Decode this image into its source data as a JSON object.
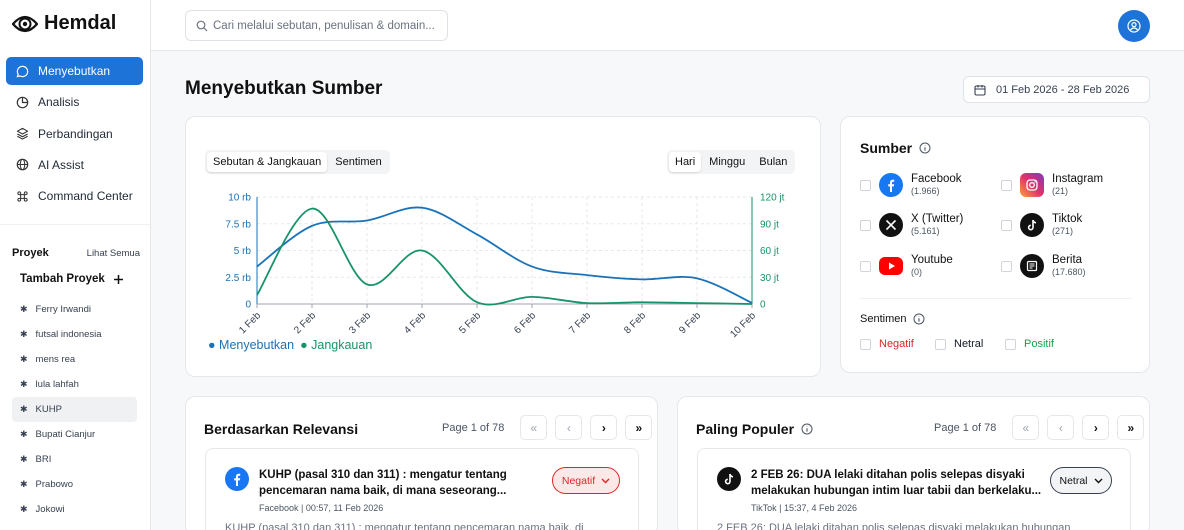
{
  "app": {
    "name": "Hemdal"
  },
  "sidebar": {
    "items": [
      {
        "label": "Menyebutkan",
        "icon": "chat-bubble-icon"
      },
      {
        "label": "Analisis",
        "icon": "pie-chart-icon"
      },
      {
        "label": "Perbandingan",
        "icon": "layers-icon"
      },
      {
        "label": "AI Assist",
        "icon": "globe-icon"
      },
      {
        "label": "Command Center",
        "icon": "command-icon"
      }
    ],
    "projects_title": "Proyek",
    "see_all": "Lihat Semua",
    "add_project": "Tambah Proyek",
    "projects": [
      "Ferry Irwandi",
      "futsal indonesia",
      "mens rea",
      "lula lahfah",
      "KUHP",
      "Bupati Cianjur",
      "BRI",
      "Prabowo",
      "Jokowi"
    ],
    "active_project": "KUHP"
  },
  "header": {
    "search_placeholder": "Cari melalui sebutan, penulisan & domain..."
  },
  "page": {
    "title": "Menyebutkan Sumber",
    "date_range": "01 Feb 2026 - 28 Feb 2026"
  },
  "chart_controls": {
    "metric_tabs": [
      "Sebutan & Jangkauan",
      "Sentimen"
    ],
    "period_tabs": [
      "Hari",
      "Minggu",
      "Bulan"
    ]
  },
  "chart_data": {
    "type": "line",
    "x": [
      "1 Feb",
      "2 Feb",
      "3 Feb",
      "4 Feb",
      "5 Feb",
      "6 Feb",
      "7 Feb",
      "8 Feb",
      "9 Feb",
      "10 Feb"
    ],
    "series": [
      {
        "name": "Menyebutkan",
        "axis": "left",
        "color": "#1a72b8",
        "values": [
          3500,
          7300,
          7800,
          9000,
          6500,
          3500,
          2700,
          2300,
          2400,
          100
        ]
      },
      {
        "name": "Jangkauan",
        "axis": "right",
        "color": "#17936b",
        "values": [
          10,
          107,
          22,
          60,
          2,
          8,
          1,
          2,
          1,
          0
        ]
      }
    ],
    "left_axis": {
      "ticks": [
        "0",
        "2.5 rb",
        "5 rb",
        "7.5 rb",
        "10 rb"
      ],
      "range": [
        0,
        10000
      ]
    },
    "right_axis": {
      "ticks": [
        "0",
        "30 jt",
        "60 jt",
        "90 jt",
        "120 jt"
      ],
      "range": [
        0,
        120
      ]
    },
    "grid": true,
    "legend": "bottom-left"
  },
  "sources": {
    "title": "Sumber",
    "items": [
      {
        "name": "Facebook",
        "count": "(1.966)",
        "icon": "facebook-icon"
      },
      {
        "name": "Instagram",
        "count": "(21)",
        "icon": "instagram-icon"
      },
      {
        "name": "X (Twitter)",
        "count": "(5.161)",
        "icon": "x-twitter-icon"
      },
      {
        "name": "Tiktok",
        "count": "(271)",
        "icon": "tiktok-icon"
      },
      {
        "name": "Youtube",
        "count": "(0)",
        "icon": "youtube-icon"
      },
      {
        "name": "Berita",
        "count": "(17.680)",
        "icon": "news-icon"
      }
    ],
    "sentiment_title": "Sentimen",
    "sentiments": [
      {
        "label": "Negatif",
        "color": "#dc2626"
      },
      {
        "label": "Netral",
        "color": "#111827"
      },
      {
        "label": "Positif",
        "color": "#16a34a"
      }
    ]
  },
  "relevance": {
    "title": "Berdasarkan Relevansi",
    "page": "Page 1 of 78",
    "post": {
      "title_line1": "KUHP (pasal 310 dan 311) : mengatur tentang",
      "title_line2": "pencemaran nama baik, di mana seseorang...",
      "meta": "Facebook | 00:57, 11 Feb 2026",
      "snippet": "KUHP (pasal 310 dan 311) : mengatur tentang pencemaran nama baik, di",
      "sentiment": "Negatif"
    }
  },
  "popular": {
    "title": "Paling Populer",
    "page": "Page 1 of 78",
    "post": {
      "title_line1": "2 FEB 26: DUA lelaki ditahan polis selepas disyaki",
      "title_line2": "melakukan hubungan intim luar tabii dan berkelaku...",
      "meta": "TikTok | 15:37, 4 Feb 2026",
      "snippet": "2 FEB 26: DUA lelaki ditahan polis selepas disyaki melakukan hubungan",
      "sentiment": "Netral"
    }
  }
}
